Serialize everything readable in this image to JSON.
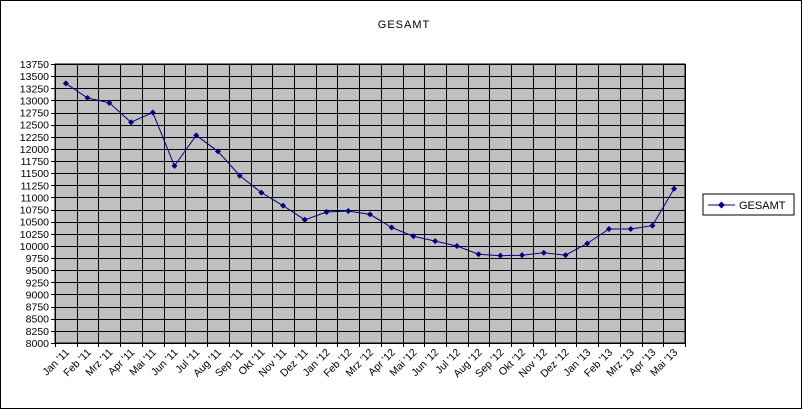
{
  "chart_data": {
    "type": "line",
    "title": "GESAMT",
    "xlabel": "",
    "ylabel": "",
    "ylim": [
      8000,
      13750
    ],
    "ytick_step": 250,
    "grid": true,
    "legend_position": "right",
    "categories": [
      "Jan '11",
      "Feb '11",
      "Mrz '11",
      "Apr '11",
      "Mai '11",
      "Jun '11",
      "Jul '11",
      "Aug '11",
      "Sep '11",
      "Okt '11",
      "Nov '11",
      "Dez '11",
      "Jan '12",
      "Feb '12",
      "Mrz '12",
      "Apr '12",
      "Mai '12",
      "Jun '12",
      "Jul '12",
      "Aug '12",
      "Sep '12",
      "Okt '12",
      "Nov '12",
      "Dez '12",
      "Jan '13",
      "Feb '13",
      "Mrz '13",
      "Apr '13",
      "Mai '13"
    ],
    "series": [
      {
        "name": "GESAMT",
        "color": "#000080",
        "values": [
          13350,
          13050,
          12950,
          12550,
          12750,
          11650,
          12280,
          11950,
          11450,
          11100,
          10830,
          10540,
          10700,
          10720,
          10650,
          10380,
          10200,
          10100,
          10000,
          9830,
          9800,
          9810,
          9860,
          9810,
          10050,
          10350,
          10350,
          10420,
          11180
        ]
      }
    ],
    "colors": {
      "plot_background": "#c0c0c0",
      "gridline": "#000000",
      "series_line": "#000080"
    }
  }
}
